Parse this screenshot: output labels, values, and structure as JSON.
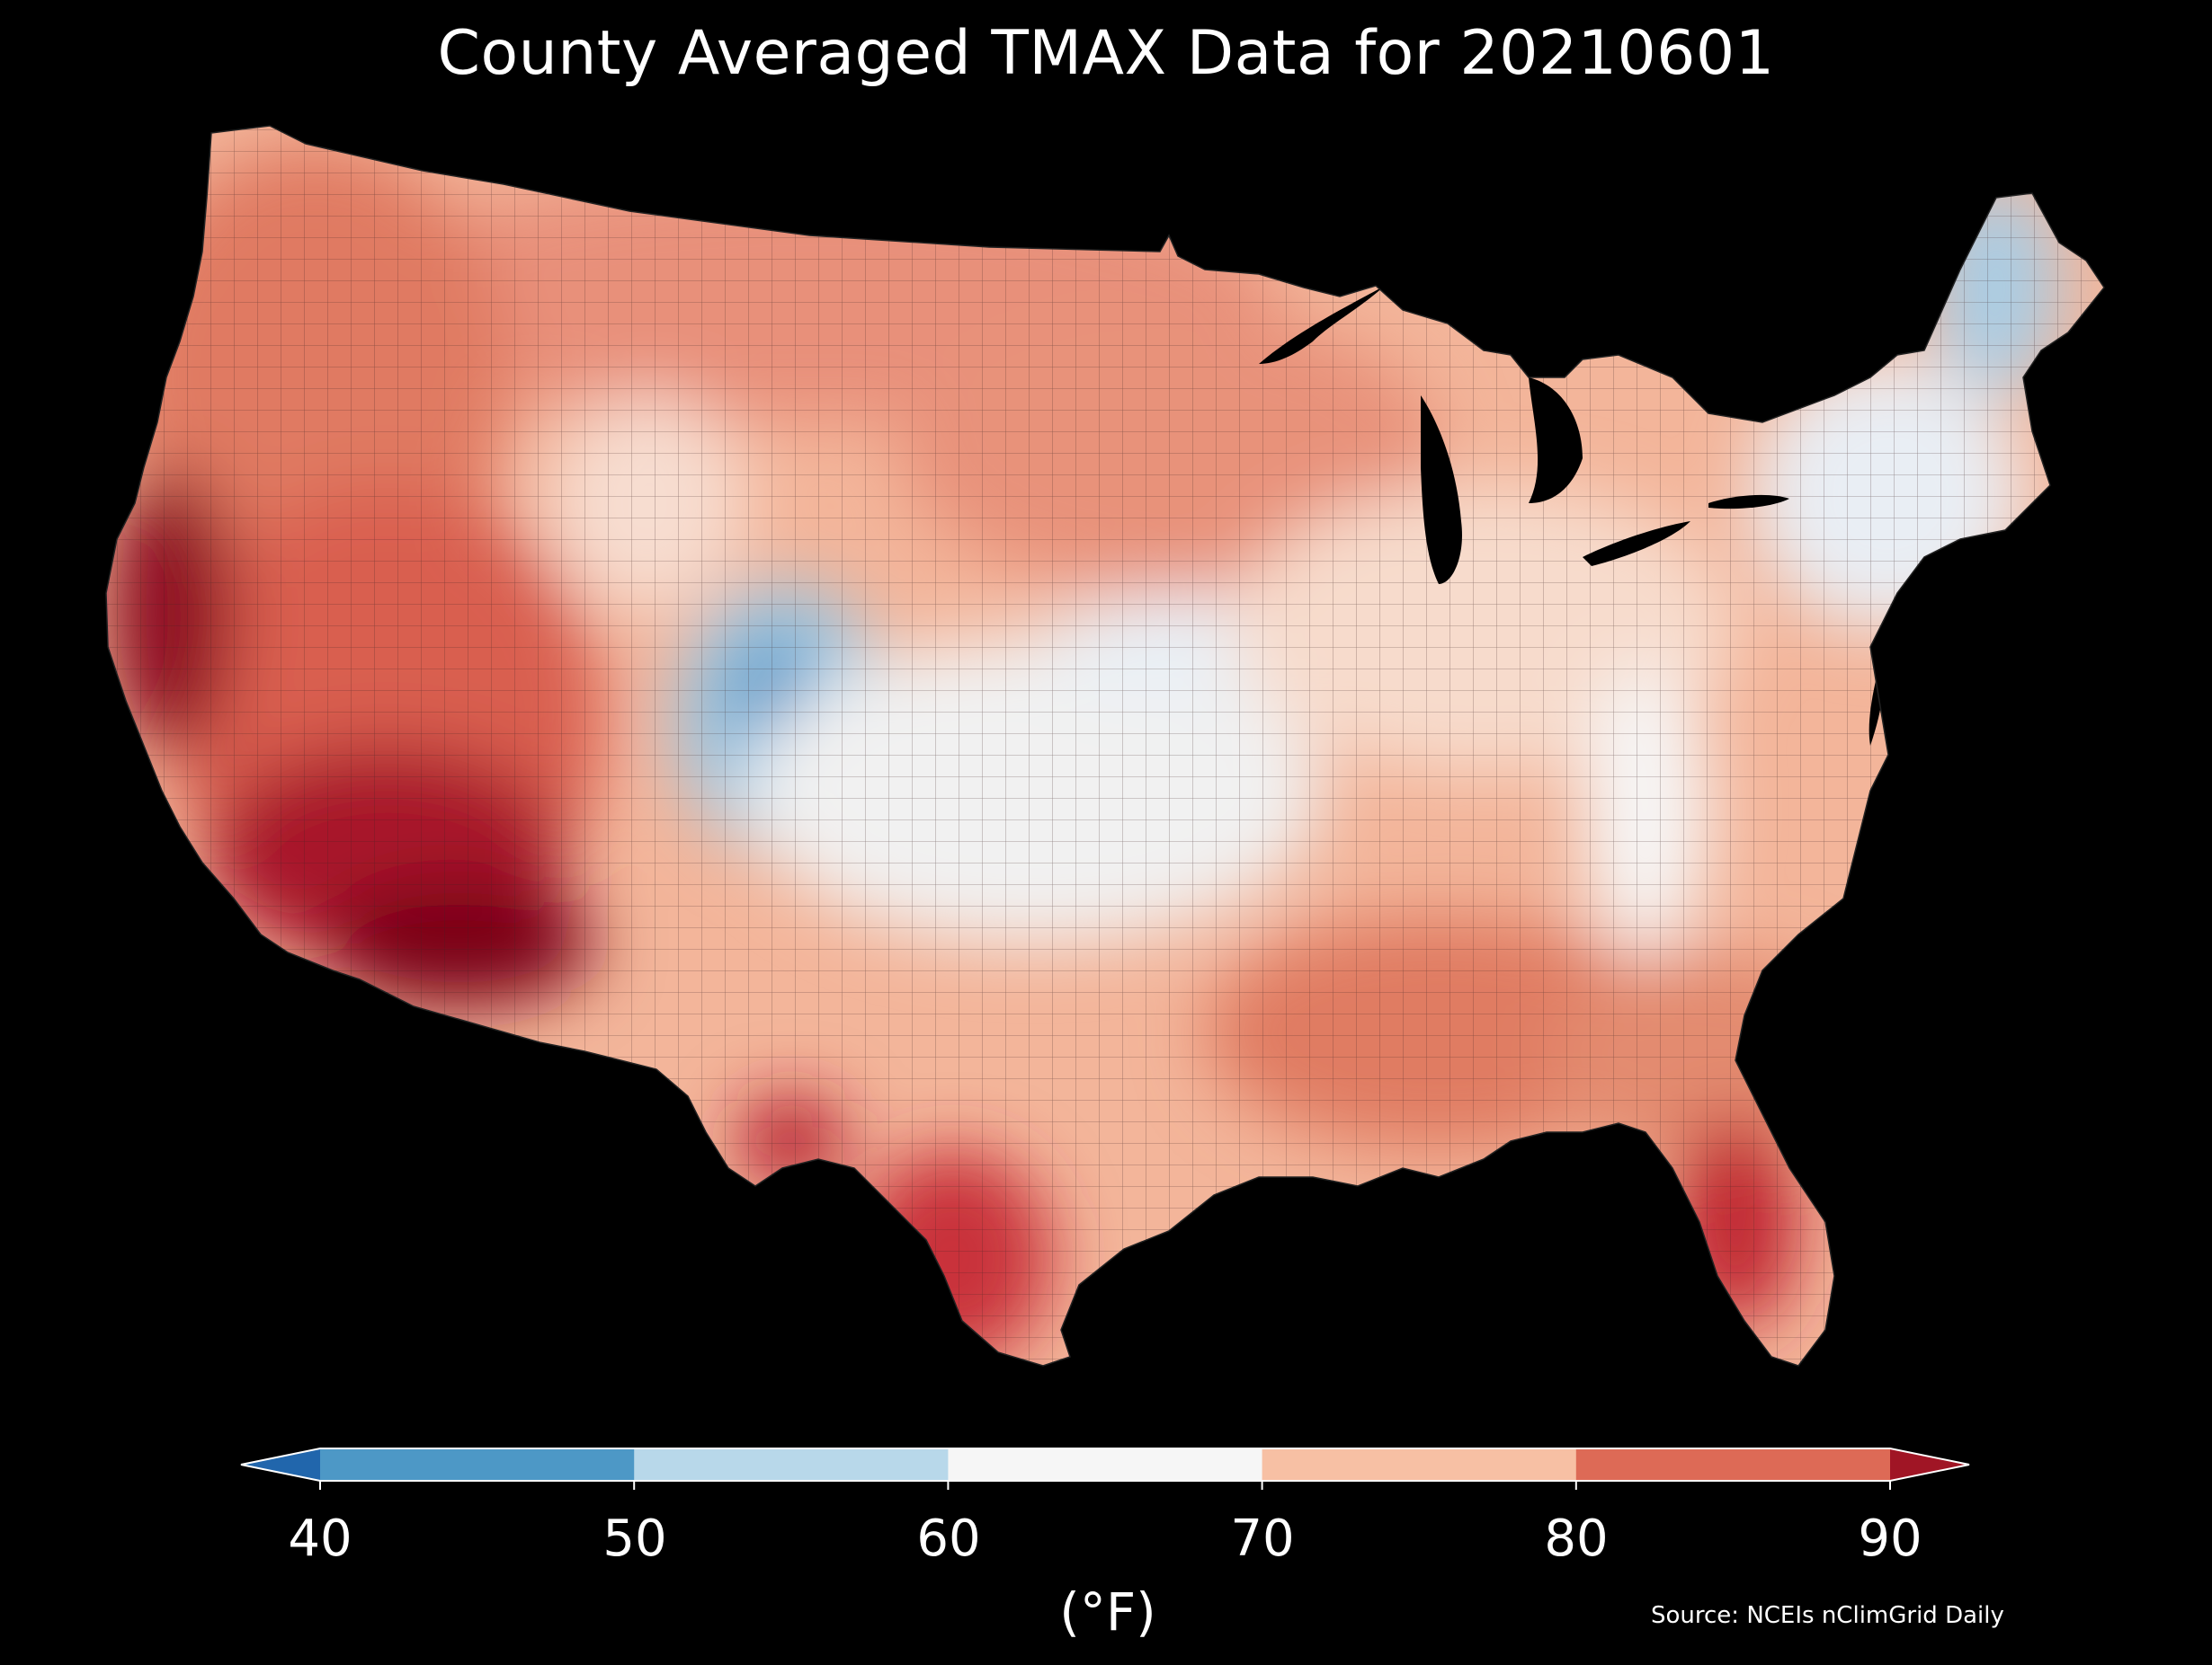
{
  "title": "County Averaged TMAX Data for 20210601",
  "source": "Source: NCEIs nClimGrid Daily",
  "colorbar": {
    "unit_label": "(°F)",
    "ticks": [
      "40",
      "50",
      "60",
      "70",
      "80",
      "90"
    ],
    "bins": [
      {
        "from": "<40",
        "color": "#2166ac"
      },
      {
        "from": "40-50",
        "color": "#4d98c6"
      },
      {
        "from": "50-60",
        "color": "#b8d8ea"
      },
      {
        "from": "60-70",
        "color": "#f6f6f6"
      },
      {
        "from": "70-80",
        "color": "#f7c0a4"
      },
      {
        "from": "80-90",
        "color": "#dd6a56"
      },
      {
        "from": ">90",
        "color": "#a01525"
      }
    ]
  },
  "regions": [
    {
      "name": "pacific-northwest",
      "level": "80-90",
      "color": "#e48a6f"
    },
    {
      "name": "california-central-valley",
      "level": ">90",
      "color": "#7a0019"
    },
    {
      "name": "desert-southwest",
      "level": ">90",
      "color": "#a51a2c"
    },
    {
      "name": "colorado-rockies",
      "level": "40-50",
      "color": "#7eb6d9"
    },
    {
      "name": "central-plains",
      "level": "60-70",
      "color": "#f3f3f3"
    },
    {
      "name": "maine",
      "level": "50-60",
      "color": "#b3d5ea"
    },
    {
      "name": "southeast",
      "level": "80-90",
      "color": "#e07a62"
    },
    {
      "name": "florida",
      "level": ">90",
      "color": "#c72b34"
    },
    {
      "name": "south-texas",
      "level": "80-90",
      "color": "#cf3a3b"
    }
  ]
}
